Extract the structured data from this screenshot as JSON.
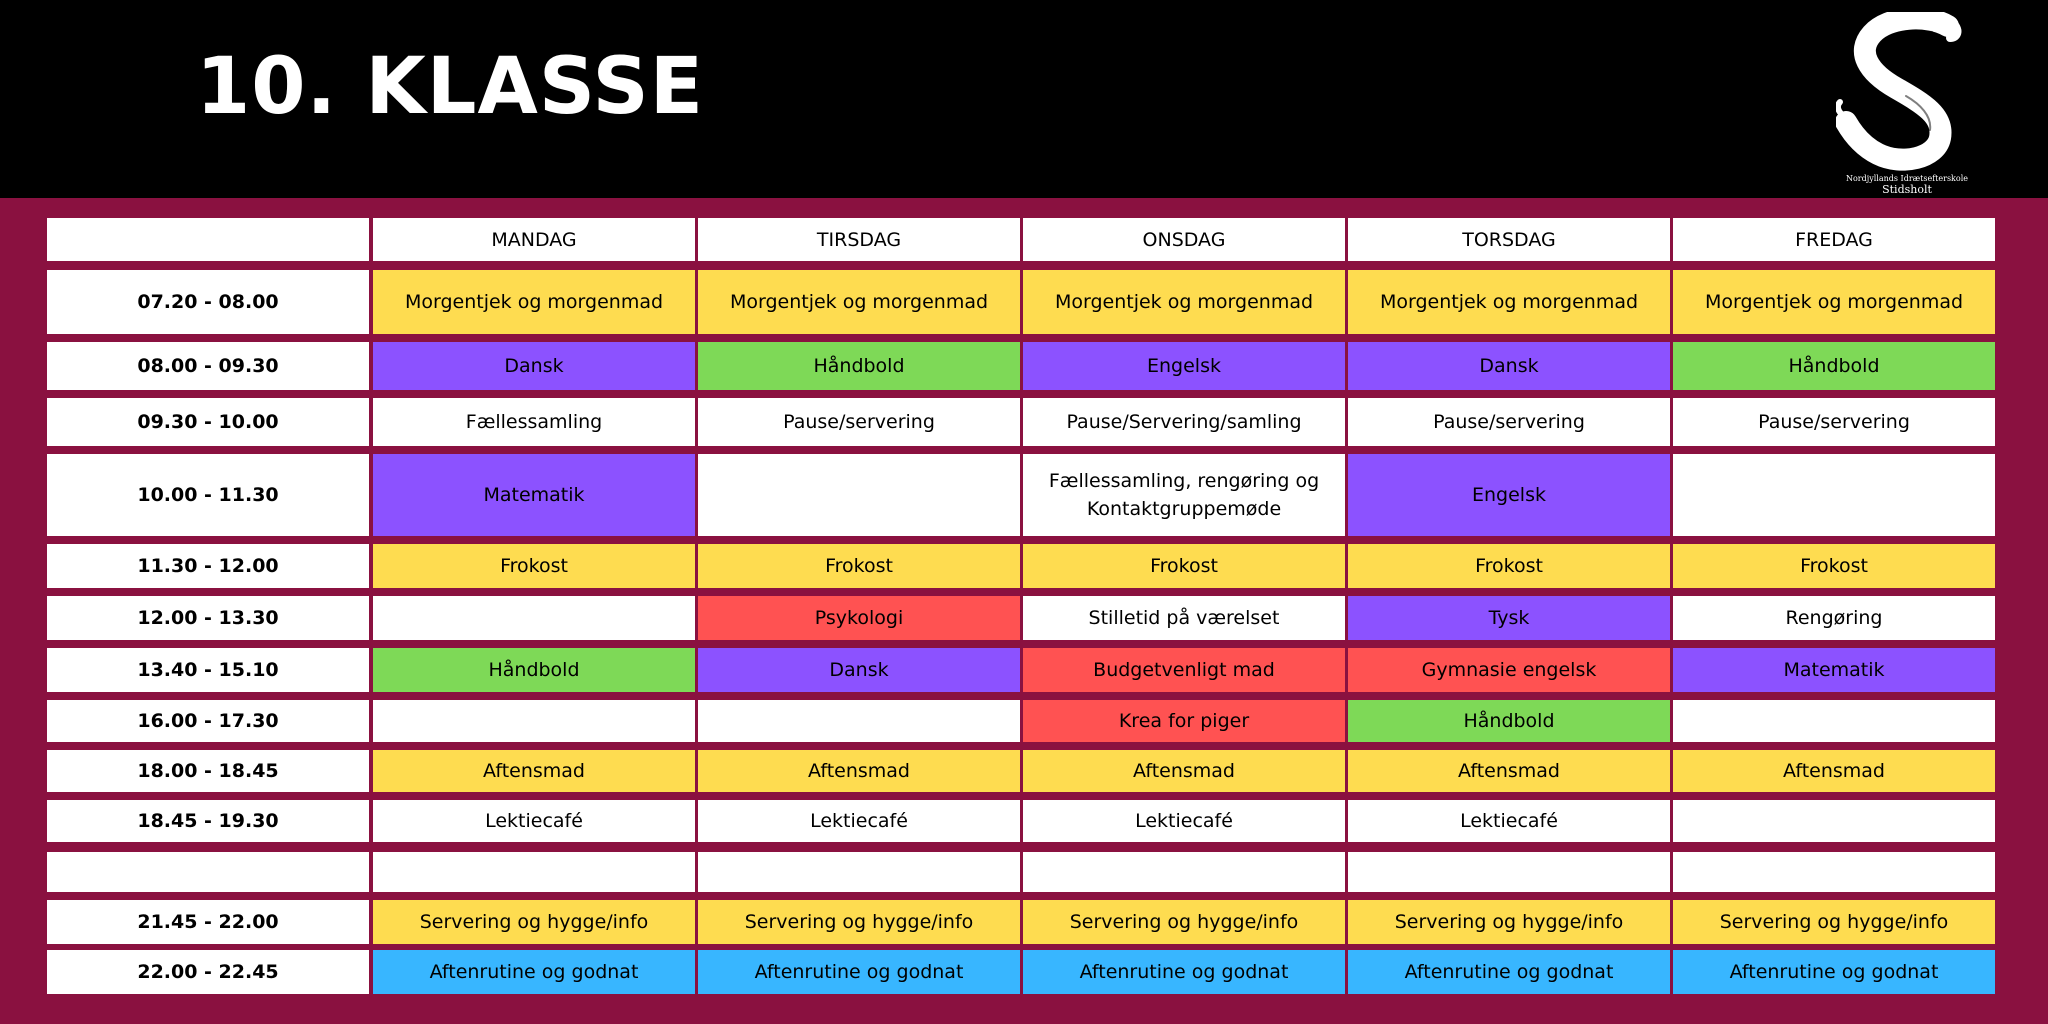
{
  "title": "10. KLASSE",
  "logo": {
    "school_line": "Nordjyllands Idrætsefterskole",
    "school_name": "Stidsholt"
  },
  "colors": {
    "yellow": "#fedc50",
    "purple": "#8c52ff",
    "green": "#7ed957",
    "red": "#ff5252",
    "blue": "#38b6ff",
    "white": "#ffffff"
  },
  "days": [
    "MANDAG",
    "TIRSDAG",
    "ONSDAG",
    "TORSDAG",
    "FREDAG"
  ],
  "rows": [
    {
      "time": "07.20 - 08.00",
      "cells": [
        {
          "text": "Morgentjek og morgenmad",
          "color": "yellow"
        },
        {
          "text": "Morgentjek og morgenmad",
          "color": "yellow"
        },
        {
          "text": "Morgentjek og morgenmad",
          "color": "yellow"
        },
        {
          "text": "Morgentjek og morgenmad",
          "color": "yellow"
        },
        {
          "text": "Morgentjek og morgenmad",
          "color": "yellow"
        }
      ]
    },
    {
      "time": "08.00 - 09.30",
      "cells": [
        {
          "text": "Dansk",
          "color": "purple"
        },
        {
          "text": "Håndbold",
          "color": "green"
        },
        {
          "text": "Engelsk",
          "color": "purple"
        },
        {
          "text": "Dansk",
          "color": "purple"
        },
        {
          "text": "Håndbold",
          "color": "green"
        }
      ]
    },
    {
      "time": "09.30 - 10.00",
      "cells": [
        {
          "text": "Fællessamling",
          "color": "white"
        },
        {
          "text": "Pause/servering",
          "color": "white"
        },
        {
          "text": "Pause/Servering/samling",
          "color": "white"
        },
        {
          "text": "Pause/servering",
          "color": "white"
        },
        {
          "text": "Pause/servering",
          "color": "white"
        }
      ]
    },
    {
      "time": "10.00 - 11.30",
      "cells": [
        {
          "text": "Matematik",
          "color": "purple"
        },
        {
          "text": "",
          "color": "white"
        },
        {
          "text": "Fællessamling, rengøring og\nKontaktgruppemøde",
          "color": "white"
        },
        {
          "text": "Engelsk",
          "color": "purple"
        },
        {
          "text": "",
          "color": "white"
        }
      ]
    },
    {
      "time": "11.30 - 12.00",
      "cells": [
        {
          "text": "Frokost",
          "color": "yellow"
        },
        {
          "text": "Frokost",
          "color": "yellow"
        },
        {
          "text": "Frokost",
          "color": "yellow"
        },
        {
          "text": "Frokost",
          "color": "yellow"
        },
        {
          "text": "Frokost",
          "color": "yellow"
        }
      ]
    },
    {
      "time": "12.00 - 13.30",
      "cells": [
        {
          "text": "",
          "color": "white"
        },
        {
          "text": "Psykologi",
          "color": "red"
        },
        {
          "text": "Stilletid på værelset",
          "color": "white"
        },
        {
          "text": "Tysk",
          "color": "purple"
        },
        {
          "text": "Rengøring",
          "color": "white"
        }
      ]
    },
    {
      "time": "13.40 - 15.10",
      "cells": [
        {
          "text": "Håndbold",
          "color": "green"
        },
        {
          "text": "Dansk",
          "color": "purple"
        },
        {
          "text": "Budgetvenligt mad",
          "color": "red"
        },
        {
          "text": "Gymnasie engelsk",
          "color": "red"
        },
        {
          "text": "Matematik",
          "color": "purple"
        }
      ]
    },
    {
      "time": "16.00 - 17.30",
      "cells": [
        {
          "text": "",
          "color": "white"
        },
        {
          "text": "",
          "color": "white"
        },
        {
          "text": "Krea for piger",
          "color": "red"
        },
        {
          "text": "Håndbold",
          "color": "green"
        },
        {
          "text": "",
          "color": "white"
        }
      ]
    },
    {
      "time": "18.00 - 18.45",
      "cells": [
        {
          "text": "Aftensmad",
          "color": "yellow"
        },
        {
          "text": "Aftensmad",
          "color": "yellow"
        },
        {
          "text": "Aftensmad",
          "color": "yellow"
        },
        {
          "text": "Aftensmad",
          "color": "yellow"
        },
        {
          "text": "Aftensmad",
          "color": "yellow"
        }
      ]
    },
    {
      "time": "18.45 - 19.30",
      "cells": [
        {
          "text": "Lektiecafé",
          "color": "white"
        },
        {
          "text": "Lektiecafé",
          "color": "white"
        },
        {
          "text": "Lektiecafé",
          "color": "white"
        },
        {
          "text": "Lektiecafé",
          "color": "white"
        },
        {
          "text": "",
          "color": "white"
        }
      ]
    },
    {
      "time": "",
      "cells": [
        {
          "text": "",
          "color": "white"
        },
        {
          "text": "",
          "color": "white"
        },
        {
          "text": "",
          "color": "white"
        },
        {
          "text": "",
          "color": "white"
        },
        {
          "text": "",
          "color": "white"
        }
      ]
    },
    {
      "time": "21.45 - 22.00",
      "cells": [
        {
          "text": "Servering og hygge/info",
          "color": "yellow"
        },
        {
          "text": "Servering og hygge/info",
          "color": "yellow"
        },
        {
          "text": "Servering og hygge/info",
          "color": "yellow"
        },
        {
          "text": "Servering og hygge/info",
          "color": "yellow"
        },
        {
          "text": "Servering og hygge/info",
          "color": "yellow"
        }
      ]
    },
    {
      "time": "22.00 - 22.45",
      "cells": [
        {
          "text": "Aftenrutine og godnat",
          "color": "blue"
        },
        {
          "text": "Aftenrutine og godnat",
          "color": "blue"
        },
        {
          "text": "Aftenrutine og godnat",
          "color": "blue"
        },
        {
          "text": "Aftenrutine og godnat",
          "color": "blue"
        },
        {
          "text": "Aftenrutine og godnat",
          "color": "blue"
        }
      ]
    }
  ]
}
